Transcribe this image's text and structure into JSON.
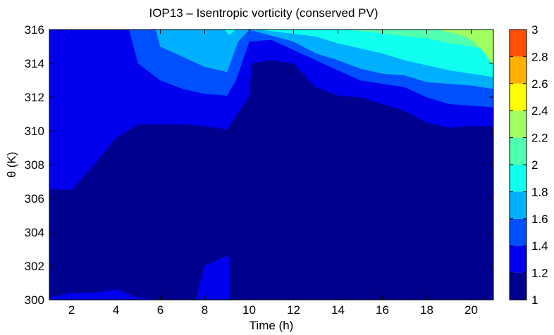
{
  "chart_data": {
    "type": "contour",
    "title": "IOP13 – Isentropic vorticity (conserved PV)",
    "xlabel": "Time (h)",
    "ylabel": "θ (K)",
    "xlim": [
      1,
      21
    ],
    "ylim": [
      300,
      316
    ],
    "x_ticks": [
      2,
      4,
      6,
      8,
      10,
      12,
      14,
      16,
      18,
      20
    ],
    "y_ticks": [
      300,
      302,
      304,
      306,
      308,
      310,
      312,
      314,
      316
    ],
    "colorbar": {
      "levels": [
        1,
        1.2,
        1.4,
        1.6,
        1.8,
        2,
        2.2,
        2.4,
        2.6,
        2.8,
        3
      ],
      "tick_labels": [
        "1",
        "1.2",
        "1.4",
        "1.6",
        "1.8",
        "2",
        "2.2",
        "2.4",
        "2.6",
        "2.8",
        "3"
      ],
      "colors": [
        "#00008f",
        "#0000ef",
        "#0050ff",
        "#00b0ff",
        "#10ffef",
        "#50ffaf",
        "#a0ff60",
        "#ffff00",
        "#ffb000",
        "#ff5000"
      ]
    },
    "contours": [
      {
        "level": 1.2,
        "upper_boundary": [
          [
            1,
            306.6
          ],
          [
            2,
            306.5
          ],
          [
            3,
            308
          ],
          [
            4,
            309.6
          ],
          [
            5,
            310.4
          ],
          [
            6,
            310.4
          ],
          [
            7,
            310.4
          ],
          [
            8,
            310.3
          ],
          [
            9,
            310.1
          ],
          [
            10,
            312.1
          ],
          [
            10.1,
            314
          ],
          [
            11,
            314.2
          ],
          [
            12,
            314
          ],
          [
            13,
            312.6
          ],
          [
            14,
            312.1
          ],
          [
            15,
            312
          ],
          [
            16,
            311.6
          ],
          [
            17,
            311.2
          ],
          [
            18,
            310.5
          ],
          [
            19,
            310.2
          ],
          [
            20,
            310.3
          ],
          [
            21,
            310.3
          ]
        ],
        "lower_patches": [
          {
            "outline": [
              [
                1,
                300
              ],
              [
                1,
                300.1
              ],
              [
                2,
                300.4
              ],
              [
                3,
                300.4
              ],
              [
                4,
                300.6
              ],
              [
                5,
                300.1
              ],
              [
                6,
                300
              ],
              [
                1,
                300
              ]
            ]
          },
          {
            "outline": [
              [
                7.6,
                300
              ],
              [
                8,
                302
              ],
              [
                9,
                302.6
              ],
              [
                9.1,
                302.5
              ],
              [
                9.1,
                300
              ],
              [
                7.6,
                300
              ]
            ]
          }
        ]
      },
      {
        "level": 1.4,
        "upper_boundary": [
          [
            1,
            316
          ],
          [
            4.6,
            316
          ],
          [
            5,
            314
          ],
          [
            6,
            313
          ],
          [
            7,
            312.5
          ],
          [
            8,
            312.2
          ],
          [
            9,
            312.1
          ],
          [
            9.4,
            313
          ],
          [
            10,
            315.3
          ],
          [
            11,
            315.4
          ],
          [
            12,
            314.8
          ],
          [
            13,
            314.2
          ],
          [
            14,
            313.6
          ],
          [
            15,
            313
          ],
          [
            16,
            312.8
          ],
          [
            17,
            312.6
          ],
          [
            18,
            312
          ],
          [
            19,
            311.6
          ],
          [
            20,
            311.5
          ],
          [
            21,
            311.4
          ]
        ]
      },
      {
        "level": 1.6,
        "upper_boundary": [
          [
            5.8,
            316
          ],
          [
            6,
            315
          ],
          [
            7,
            314.4
          ],
          [
            8,
            313.8
          ],
          [
            9,
            313.5
          ],
          [
            9.5,
            315.3
          ],
          [
            10,
            316
          ],
          [
            12,
            315.3
          ],
          [
            13,
            314.6
          ],
          [
            14,
            314.2
          ],
          [
            15,
            313.7
          ],
          [
            16,
            313.4
          ],
          [
            17,
            313.3
          ],
          [
            18,
            312.9
          ],
          [
            19,
            312.8
          ],
          [
            20,
            312.7
          ],
          [
            21,
            312.5
          ]
        ]
      },
      {
        "level": 1.8,
        "upper_boundary": [
          [
            5.9,
            316
          ],
          [
            8.9,
            316
          ],
          [
            9.1,
            315.7
          ],
          [
            9.4,
            316
          ],
          [
            10.5,
            316
          ],
          [
            13,
            315.6
          ],
          [
            14,
            315.2
          ],
          [
            15,
            314.9
          ],
          [
            16,
            314.6
          ],
          [
            17,
            314.2
          ],
          [
            18,
            313.9
          ],
          [
            19,
            313.6
          ],
          [
            20,
            313.4
          ],
          [
            21,
            313.2
          ]
        ]
      },
      {
        "level": 2.0,
        "upper_boundary": [
          [
            14.5,
            316
          ],
          [
            15,
            315.9
          ],
          [
            16,
            315.8
          ],
          [
            17,
            315.6
          ],
          [
            18,
            315.5
          ],
          [
            19,
            315.2
          ],
          [
            20,
            315
          ],
          [
            21,
            314.7
          ]
        ]
      },
      {
        "level": 2.2,
        "upper_boundary": [
          [
            18.5,
            316
          ],
          [
            19.5,
            315.7
          ],
          [
            20,
            315.4
          ],
          [
            20.5,
            314.8
          ],
          [
            21,
            313.9
          ]
        ]
      }
    ]
  }
}
